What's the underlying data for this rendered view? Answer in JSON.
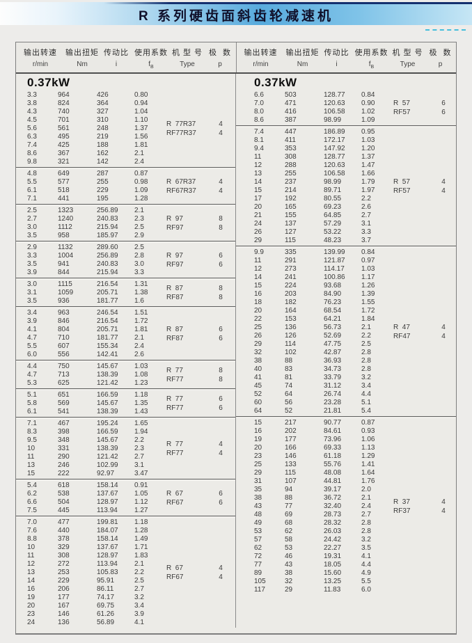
{
  "page_title": "R 系列硬齿面斜齿轮减速机",
  "table": {
    "header": {
      "c1": "输出转速",
      "c1s": "r/min",
      "c2": "输出扭矩",
      "c2s": "Nm",
      "c3": "传动比",
      "c3s": "i",
      "c4": "使用系数",
      "c4f": "f",
      "c4sub": "B",
      "c5": "机 型 号",
      "c5s": "Type",
      "c6": "极  数",
      "c6s": "p"
    },
    "left": {
      "power_label": "0.37kW",
      "blocks": [
        {
          "rows": [
            [
              "3.3",
              "964",
              "426",
              "0.80"
            ],
            [
              "3.8",
              "824",
              "364",
              "0.94"
            ],
            [
              "4.3",
              "740",
              "327",
              "1.04"
            ],
            [
              "4.5",
              "701",
              "310",
              "1.10"
            ],
            [
              "5.6",
              "561",
              "248",
              "1.37"
            ],
            [
              "6.3",
              "495",
              "219",
              "1.56"
            ],
            [
              "7.4",
              "425",
              "188",
              "1.81"
            ],
            [
              "8.6",
              "367",
              "162",
              "2.1"
            ],
            [
              "9.8",
              "321",
              "142",
              "2.4"
            ]
          ],
          "types": [
            "R  77R37",
            "RF77R37"
          ],
          "poles": [
            "4",
            "4"
          ]
        },
        {
          "rows": [
            [
              "4.8",
              "649",
              "287",
              "0.87"
            ],
            [
              "5.5",
              "577",
              "255",
              "0.98"
            ],
            [
              "6.1",
              "518",
              "229",
              "1.09"
            ],
            [
              "7.1",
              "441",
              "195",
              "1.28"
            ]
          ],
          "types": [
            "R  67R37",
            "RF67R37"
          ],
          "poles": [
            "4",
            "4"
          ]
        },
        {
          "rows": [
            [
              "2.5",
              "1323",
              "256.89",
              "2.1"
            ],
            [
              "2.7",
              "1240",
              "240.83",
              "2.3"
            ],
            [
              "3.0",
              "1112",
              "215.94",
              "2.5"
            ],
            [
              "3.5",
              "958",
              "185.97",
              "2.9"
            ]
          ],
          "types": [
            "R  97",
            "RF97"
          ],
          "poles": [
            "8",
            "8"
          ]
        },
        {
          "rows": [
            [
              "2.9",
              "1132",
              "289.60",
              "2.5"
            ],
            [
              "3.3",
              "1004",
              "256.89",
              "2.8"
            ],
            [
              "3.5",
              "941",
              "240.83",
              "3.0"
            ],
            [
              "3.9",
              "844",
              "215.94",
              "3.3"
            ]
          ],
          "types": [
            "R  97",
            "RF97"
          ],
          "poles": [
            "6",
            "6"
          ]
        },
        {
          "rows": [
            [
              "3.0",
              "1115",
              "216.54",
              "1.31"
            ],
            [
              "3.1",
              "1059",
              "205.71",
              "1.38"
            ],
            [
              "3.5",
              "936",
              "181.77",
              "1.6"
            ]
          ],
          "types": [
            "R  87",
            "RF87"
          ],
          "poles": [
            "8",
            "8"
          ]
        },
        {
          "rows": [
            [
              "3.4",
              "963",
              "246.54",
              "1.51"
            ],
            [
              "3.9",
              "846",
              "216.54",
              "1.72"
            ],
            [
              "4.1",
              "804",
              "205.71",
              "1.81"
            ],
            [
              "4.7",
              "710",
              "181.77",
              "2.1"
            ],
            [
              "5.5",
              "607",
              "155.34",
              "2.4"
            ],
            [
              "6.0",
              "556",
              "142.41",
              "2.6"
            ]
          ],
          "types": [
            "R  87",
            "RF87"
          ],
          "poles": [
            "6",
            "6"
          ]
        },
        {
          "rows": [
            [
              "4.4",
              "750",
              "145.67",
              "1.03"
            ],
            [
              "4.7",
              "713",
              "138.39",
              "1.08"
            ],
            [
              "5.3",
              "625",
              "121.42",
              "1.23"
            ]
          ],
          "types": [
            "R  77",
            "RF77"
          ],
          "poles": [
            "8",
            "8"
          ]
        },
        {
          "rows": [
            [
              "5.1",
              "651",
              "166.59",
              "1.18"
            ],
            [
              "5.8",
              "569",
              "145.67",
              "1.35"
            ],
            [
              "6.1",
              "541",
              "138.39",
              "1.43"
            ]
          ],
          "types": [
            "R  77",
            "RF77"
          ],
          "poles": [
            "6",
            "6"
          ]
        },
        {
          "rows": [
            [
              "7.1",
              "467",
              "195.24",
              "1.65"
            ],
            [
              "8.3",
              "398",
              "166.59",
              "1.94"
            ],
            [
              "9.5",
              "348",
              "145.67",
              "2.2"
            ],
            [
              "10",
              "331",
              "138.39",
              "2.3"
            ],
            [
              "11",
              "290",
              "121.42",
              "2.7"
            ],
            [
              "13",
              "246",
              "102.99",
              "3.1"
            ],
            [
              "15",
              "222",
              "92.97",
              "3.47"
            ]
          ],
          "types": [
            "R  77",
            "RF77"
          ],
          "poles": [
            "4",
            "4"
          ]
        },
        {
          "rows": [
            [
              "5.4",
              "618",
              "158.14",
              "0.91"
            ],
            [
              "6.2",
              "538",
              "137.67",
              "1.05"
            ],
            [
              "6.6",
              "504",
              "128.97",
              "1.12"
            ],
            [
              "7.5",
              "445",
              "113.94",
              "1.27"
            ]
          ],
          "types": [
            "R  67",
            "RF67"
          ],
          "poles": [
            "6",
            "6"
          ]
        },
        {
          "rows": [
            [
              "7.0",
              "477",
              "199.81",
              "1.18"
            ],
            [
              "7.6",
              "440",
              "184.07",
              "1.28"
            ],
            [
              "8.8",
              "378",
              "158.14",
              "1.49"
            ],
            [
              "10",
              "329",
              "137.67",
              "1.71"
            ],
            [
              "11",
              "308",
              "128.97",
              "1.83"
            ],
            [
              "12",
              "272",
              "113.94",
              "2.1"
            ],
            [
              "13",
              "253",
              "105.83",
              "2.2"
            ],
            [
              "14",
              "229",
              "95.91",
              "2.5"
            ],
            [
              "16",
              "206",
              "86.11",
              "2.7"
            ],
            [
              "19",
              "177",
              "74.17",
              "3.2"
            ],
            [
              "20",
              "167",
              "69.75",
              "3.4"
            ],
            [
              "23",
              "146",
              "61.26",
              "3.9"
            ],
            [
              "24",
              "136",
              "56.89",
              "4.1"
            ]
          ],
          "types": [
            "R  67",
            "RF67"
          ],
          "poles": [
            "4",
            "4"
          ]
        }
      ]
    },
    "right": {
      "power_label": "0.37kW",
      "blocks": [
        {
          "rows": [
            [
              "6.6",
              "503",
              "128.77",
              "0.84"
            ],
            [
              "7.0",
              "471",
              "120.63",
              "0.90"
            ],
            [
              "8.0",
              "416",
              "106.58",
              "1.02"
            ],
            [
              "8.6",
              "387",
              "98.99",
              "1.09"
            ]
          ],
          "types": [
            "R  57",
            "RF57"
          ],
          "poles": [
            "6",
            "6"
          ]
        },
        {
          "rows": [
            [
              "7.4",
              "447",
              "186.89",
              "0.95"
            ],
            [
              "8.1",
              "411",
              "172.17",
              "1.03"
            ],
            [
              "9.4",
              "353",
              "147.92",
              "1.20"
            ],
            [
              "11",
              "308",
              "128.77",
              "1.37"
            ],
            [
              "12",
              "288",
              "120.63",
              "1.47"
            ],
            [
              "13",
              "255",
              "106.58",
              "1.66"
            ],
            [
              "14",
              "237",
              "98.99",
              "1.79"
            ],
            [
              "15",
              "214",
              "89.71",
              "1.97"
            ],
            [
              "17",
              "192",
              "80.55",
              "2.2"
            ],
            [
              "20",
              "165",
              "69.23",
              "2.6"
            ],
            [
              "21",
              "155",
              "64.85",
              "2.7"
            ],
            [
              "24",
              "137",
              "57.29",
              "3.1"
            ],
            [
              "26",
              "127",
              "53.22",
              "3.3"
            ],
            [
              "29",
              "115",
              "48.23",
              "3.7"
            ]
          ],
          "types": [
            "R  57",
            "RF57"
          ],
          "poles": [
            "4",
            "4"
          ]
        },
        {
          "rows": [
            [
              "9.9",
              "335",
              "139.99",
              "0.84"
            ],
            [
              "11",
              "291",
              "121.87",
              "0.97"
            ],
            [
              "12",
              "273",
              "114.17",
              "1.03"
            ],
            [
              "14",
              "241",
              "100.86",
              "1.17"
            ],
            [
              "15",
              "224",
              "93.68",
              "1.26"
            ],
            [
              "16",
              "203",
              "84.90",
              "1.39"
            ],
            [
              "18",
              "182",
              "76.23",
              "1.55"
            ],
            [
              "20",
              "164",
              "68.54",
              "1.72"
            ],
            [
              "22",
              "153",
              "64.21",
              "1.84"
            ],
            [
              "25",
              "136",
              "56.73",
              "2.1"
            ],
            [
              "26",
              "126",
              "52.69",
              "2.2"
            ],
            [
              "29",
              "114",
              "47.75",
              "2.5"
            ],
            [
              "32",
              "102",
              "42.87",
              "2.8"
            ],
            [
              "38",
              "88",
              "36.93",
              "2.8"
            ],
            [
              "40",
              "83",
              "34.73",
              "2.8"
            ],
            [
              "41",
              "81",
              "33.79",
              "3.2"
            ],
            [
              "45",
              "74",
              "31.12",
              "3.4"
            ],
            [
              "52",
              "64",
              "26.74",
              "4.4"
            ],
            [
              "60",
              "56",
              "23.28",
              "5.1"
            ],
            [
              "64",
              "52",
              "21.81",
              "5.4"
            ]
          ],
          "types": [
            "R  47",
            "RF47"
          ],
          "poles": [
            "4",
            "4"
          ]
        },
        {
          "rows": [
            [
              "15",
              "217",
              "90.77",
              "0.87"
            ],
            [
              "16",
              "202",
              "84.61",
              "0.93"
            ],
            [
              "19",
              "177",
              "73.96",
              "1.06"
            ],
            [
              "20",
              "166",
              "69.33",
              "1.13"
            ],
            [
              "23",
              "146",
              "61.18",
              "1.29"
            ],
            [
              "25",
              "133",
              "55.76",
              "1.41"
            ],
            [
              "29",
              "115",
              "48.08",
              "1.64"
            ],
            [
              "31",
              "107",
              "44.81",
              "1.76"
            ],
            [
              "35",
              "94",
              "39.17",
              "2.0"
            ],
            [
              "38",
              "88",
              "36.72",
              "2.1"
            ],
            [
              "43",
              "77",
              "32.40",
              "2.4"
            ],
            [
              "48",
              "69",
              "28.73",
              "2.7"
            ],
            [
              "49",
              "68",
              "28.32",
              "2.8"
            ],
            [
              "53",
              "62",
              "26.03",
              "2.8"
            ],
            [
              "57",
              "58",
              "24.42",
              "3.2"
            ],
            [
              "62",
              "53",
              "22.27",
              "3.5"
            ],
            [
              "72",
              "46",
              "19.31",
              "4.1"
            ],
            [
              "77",
              "43",
              "18.05",
              "4.4"
            ],
            [
              "89",
              "38",
              "15.60",
              "4.9"
            ],
            [
              "105",
              "32",
              "13.25",
              "5.5"
            ],
            [
              "117",
              "29",
              "11.83",
              "6.0"
            ]
          ],
          "types": [
            "R  37",
            "RF37"
          ],
          "poles": [
            "4",
            "4"
          ]
        }
      ]
    }
  }
}
